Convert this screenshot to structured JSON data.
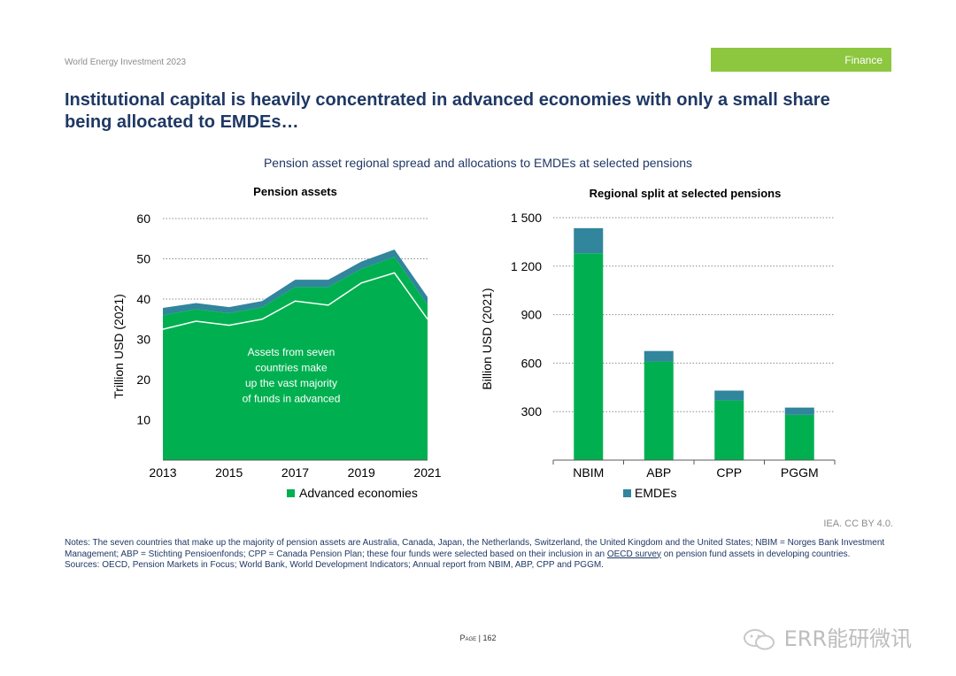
{
  "header": {
    "report": "World Energy Investment 2023",
    "tag": "Finance"
  },
  "title": "Institutional capital is heavily concentrated in advanced economies with only a small share being allocated to EMDEs…",
  "figure_title": "Pension asset regional spread and allocations to EMDEs at selected pensions",
  "chart_data": [
    {
      "type": "area",
      "title": "Pension assets",
      "ylabel": "Trillion USD (2021)",
      "x": [
        2013,
        2014,
        2015,
        2016,
        2017,
        2018,
        2019,
        2020,
        2021
      ],
      "xticks": [
        "2013",
        "2015",
        "2017",
        "2019",
        "2021"
      ],
      "yticks": [
        "10",
        "20",
        "30",
        "40",
        "50",
        "60"
      ],
      "ylim": [
        0,
        60
      ],
      "grid": true,
      "series": [
        {
          "name": "Advanced economies",
          "color": "#00b050",
          "values": [
            36.0,
            37.5,
            36.5,
            38.0,
            43.0,
            43.0,
            47.5,
            50.5,
            38.5
          ]
        },
        {
          "name": "",
          "color": "#31859c",
          "values": [
            37.8,
            39.0,
            38.0,
            39.5,
            44.8,
            44.8,
            49.3,
            52.3,
            40.5
          ]
        }
      ],
      "seven_countries": [
        32.5,
        34.5,
        33.5,
        35.0,
        39.5,
        38.5,
        44.0,
        46.5,
        35.0
      ],
      "annotation": [
        "Assets from seven",
        "countries make",
        "up the vast majority",
        "of funds in advanced"
      ],
      "legend": "bottom"
    },
    {
      "type": "bar",
      "title": "Regional split at selected pensions",
      "ylabel": "Billion USD (2021)",
      "categories": [
        "NBIM",
        "ABP",
        "CPP",
        "PGGM"
      ],
      "yticks": [
        "300",
        "600",
        "900",
        "1 200",
        "1 500"
      ],
      "ylim": [
        0,
        1500
      ],
      "grid": true,
      "series": [
        {
          "name": "",
          "color": "#00b050",
          "values": [
            1280,
            610,
            370,
            280
          ]
        },
        {
          "name": "EMDEs",
          "color": "#31859c",
          "values": [
            155,
            65,
            60,
            45
          ]
        }
      ],
      "legend": "bottom"
    }
  ],
  "credit": "IEA. CC BY 4.0.",
  "notes": {
    "line1": "Notes: The seven countries that make up the majority of pension assets are Australia, Canada, Japan, the Netherlands, Switzerland, the United Kingdom and the United States; NBIM = Norges Bank Investment Management; ABP = Stichting Pensioenfonds; CPP = Canada Pension Plan; these four funds were selected based on their inclusion in an",
    "link": "OECD survey",
    "line2": " on pension fund assets in developing countries.",
    "sources": "Sources: OECD, Pension Markets in Focus; World Bank, World Development Indicators; Annual report from NBIM, ABP, CPP and PGGM."
  },
  "page": {
    "label": "Page",
    "number": "162"
  },
  "watermark": "ERR能研微讯"
}
